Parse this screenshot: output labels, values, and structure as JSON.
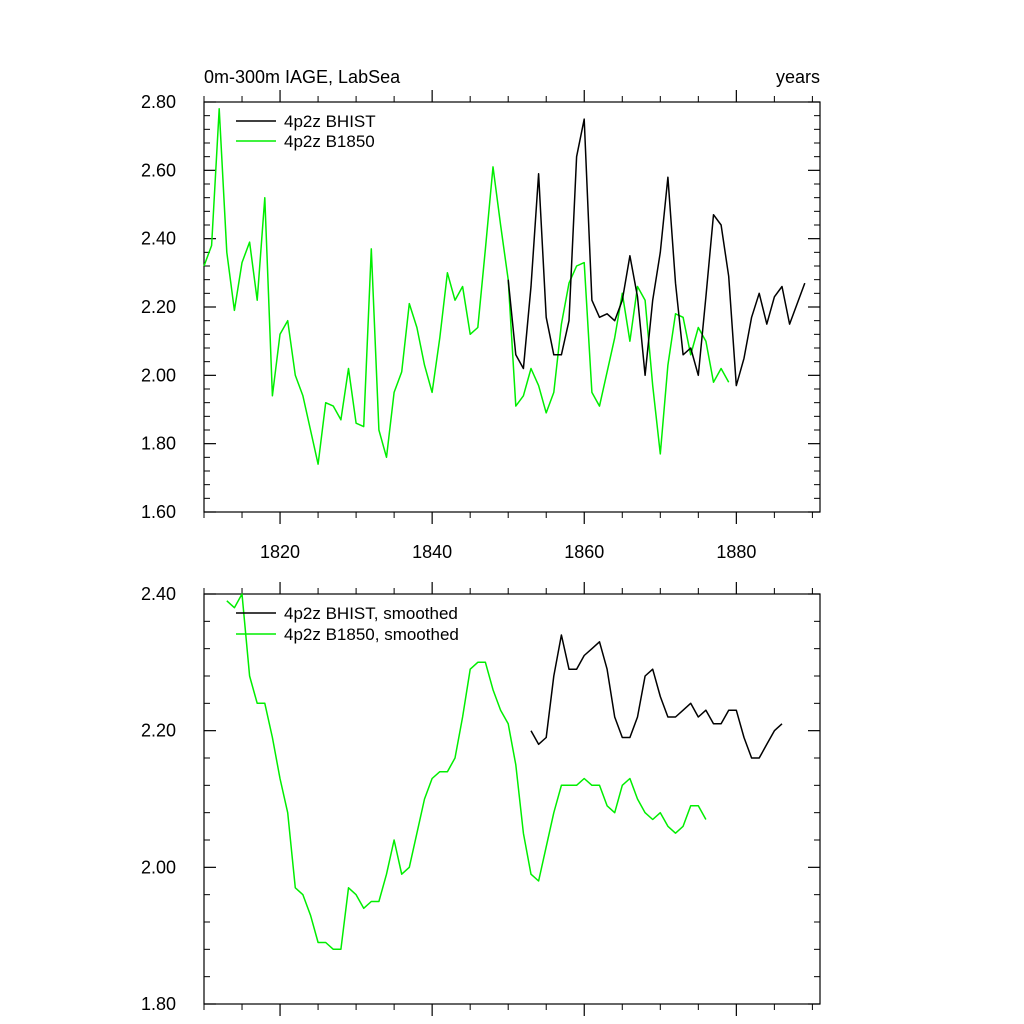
{
  "chart_data": [
    {
      "type": "line",
      "title_left": "0m-300m IAGE, LabSea",
      "title_right": "years",
      "xlabel": "",
      "ylabel": "",
      "xlim": [
        1810,
        1891
      ],
      "ylim": [
        1.6,
        2.8
      ],
      "x_ticks": [
        1820,
        1840,
        1860,
        1880
      ],
      "x_tick_labels": [
        "1820",
        "1840",
        "1860",
        "1880"
      ],
      "y_ticks": [
        1.6,
        1.8,
        2.0,
        2.2,
        2.4,
        2.6,
        2.8
      ],
      "y_tick_labels": [
        "1.60",
        "1.80",
        "2.00",
        "2.20",
        "2.40",
        "2.60",
        "2.80"
      ],
      "legend_position": "top-left",
      "series": [
        {
          "name": "4p2z BHIST",
          "color": "#000000",
          "x": [
            1850,
            1851,
            1852,
            1853,
            1854,
            1855,
            1856,
            1857,
            1858,
            1859,
            1860,
            1861,
            1862,
            1863,
            1864,
            1865,
            1866,
            1867,
            1868,
            1869,
            1870,
            1871,
            1872,
            1873,
            1874,
            1875,
            1876,
            1877,
            1878,
            1879,
            1880,
            1881,
            1882,
            1883,
            1884,
            1885,
            1886,
            1887,
            1888,
            1889
          ],
          "values": [
            2.28,
            2.06,
            2.02,
            2.26,
            2.59,
            2.17,
            2.06,
            2.06,
            2.16,
            2.64,
            2.75,
            2.22,
            2.17,
            2.18,
            2.16,
            2.22,
            2.35,
            2.23,
            2.0,
            2.22,
            2.36,
            2.58,
            2.27,
            2.06,
            2.08,
            2.0,
            2.23,
            2.47,
            2.44,
            2.29,
            1.97,
            2.05,
            2.17,
            2.24,
            2.15,
            2.23,
            2.26,
            2.15,
            2.21,
            2.27
          ]
        },
        {
          "name": "4p2z B1850",
          "color": "#00ee00",
          "x": [
            1810,
            1811,
            1812,
            1813,
            1814,
            1815,
            1816,
            1817,
            1818,
            1819,
            1820,
            1821,
            1822,
            1823,
            1824,
            1825,
            1826,
            1827,
            1828,
            1829,
            1830,
            1831,
            1832,
            1833,
            1834,
            1835,
            1836,
            1837,
            1838,
            1839,
            1840,
            1841,
            1842,
            1843,
            1844,
            1845,
            1846,
            1847,
            1848,
            1849,
            1850,
            1851,
            1852,
            1853,
            1854,
            1855,
            1856,
            1857,
            1858,
            1859,
            1860,
            1861,
            1862,
            1863,
            1864,
            1865,
            1866,
            1867,
            1868,
            1869,
            1870,
            1871,
            1872,
            1873,
            1874,
            1875,
            1876,
            1877,
            1878,
            1879
          ],
          "values": [
            2.32,
            2.38,
            2.78,
            2.36,
            2.19,
            2.33,
            2.39,
            2.22,
            2.52,
            1.94,
            2.12,
            2.16,
            2.0,
            1.94,
            1.84,
            1.74,
            1.92,
            1.91,
            1.87,
            2.02,
            1.86,
            1.85,
            2.37,
            1.84,
            1.76,
            1.95,
            2.01,
            2.21,
            2.14,
            2.03,
            1.95,
            2.11,
            2.3,
            2.22,
            2.26,
            2.12,
            2.14,
            2.37,
            2.61,
            2.44,
            2.28,
            1.91,
            1.94,
            2.02,
            1.97,
            1.89,
            1.95,
            2.15,
            2.27,
            2.32,
            2.33,
            1.95,
            1.91,
            2.01,
            2.11,
            2.24,
            2.1,
            2.26,
            2.22,
            1.97,
            1.77,
            2.03,
            2.18,
            2.17,
            2.06,
            2.14,
            2.1,
            1.98,
            2.02,
            1.98
          ]
        }
      ]
    },
    {
      "type": "line",
      "xlim": [
        1810,
        1891
      ],
      "ylim": [
        1.8,
        2.4
      ],
      "x_ticks": [
        1820,
        1840,
        1860,
        1880
      ],
      "y_ticks": [
        1.8,
        2.0,
        2.2,
        2.4
      ],
      "y_tick_labels": [
        "1.80",
        "2.00",
        "2.20",
        "2.40"
      ],
      "legend_position": "top-left",
      "series": [
        {
          "name": "4p2z BHIST, smoothed",
          "color": "#000000",
          "x": [
            1853,
            1854,
            1855,
            1856,
            1857,
            1858,
            1859,
            1860,
            1861,
            1862,
            1863,
            1864,
            1865,
            1866,
            1867,
            1868,
            1869,
            1870,
            1871,
            1872,
            1873,
            1874,
            1875,
            1876,
            1877,
            1878,
            1879,
            1880,
            1881,
            1882,
            1883,
            1884,
            1885,
            1886
          ],
          "values": [
            2.2,
            2.18,
            2.19,
            2.28,
            2.34,
            2.29,
            2.29,
            2.31,
            2.32,
            2.33,
            2.29,
            2.22,
            2.19,
            2.19,
            2.22,
            2.28,
            2.29,
            2.25,
            2.22,
            2.22,
            2.23,
            2.24,
            2.22,
            2.23,
            2.21,
            2.21,
            2.23,
            2.23,
            2.19,
            2.16,
            2.16,
            2.18,
            2.2,
            2.21
          ]
        },
        {
          "name": "4p2z B1850, smoothed",
          "color": "#00ee00",
          "x": [
            1813,
            1814,
            1815,
            1816,
            1817,
            1818,
            1819,
            1820,
            1821,
            1822,
            1823,
            1824,
            1825,
            1826,
            1827,
            1828,
            1829,
            1830,
            1831,
            1832,
            1833,
            1834,
            1835,
            1836,
            1837,
            1838,
            1839,
            1840,
            1841,
            1842,
            1843,
            1844,
            1845,
            1846,
            1847,
            1848,
            1849,
            1850,
            1851,
            1852,
            1853,
            1854,
            1855,
            1856,
            1857,
            1858,
            1859,
            1860,
            1861,
            1862,
            1863,
            1864,
            1865,
            1866,
            1867,
            1868,
            1869,
            1870,
            1871,
            1872,
            1873,
            1874,
            1875,
            1876
          ],
          "values": [
            2.39,
            2.38,
            2.4,
            2.28,
            2.24,
            2.24,
            2.19,
            2.13,
            2.08,
            1.97,
            1.96,
            1.93,
            1.89,
            1.89,
            1.88,
            1.88,
            1.97,
            1.96,
            1.94,
            1.95,
            1.95,
            1.99,
            2.04,
            1.99,
            2.0,
            2.05,
            2.1,
            2.13,
            2.14,
            2.14,
            2.16,
            2.22,
            2.29,
            2.3,
            2.3,
            2.26,
            2.23,
            2.21,
            2.15,
            2.05,
            1.99,
            1.98,
            2.03,
            2.08,
            2.12,
            2.12,
            2.12,
            2.13,
            2.12,
            2.12,
            2.09,
            2.08,
            2.12,
            2.13,
            2.1,
            2.08,
            2.07,
            2.08,
            2.06,
            2.05,
            2.06,
            2.09,
            2.09,
            2.07
          ]
        }
      ]
    }
  ]
}
